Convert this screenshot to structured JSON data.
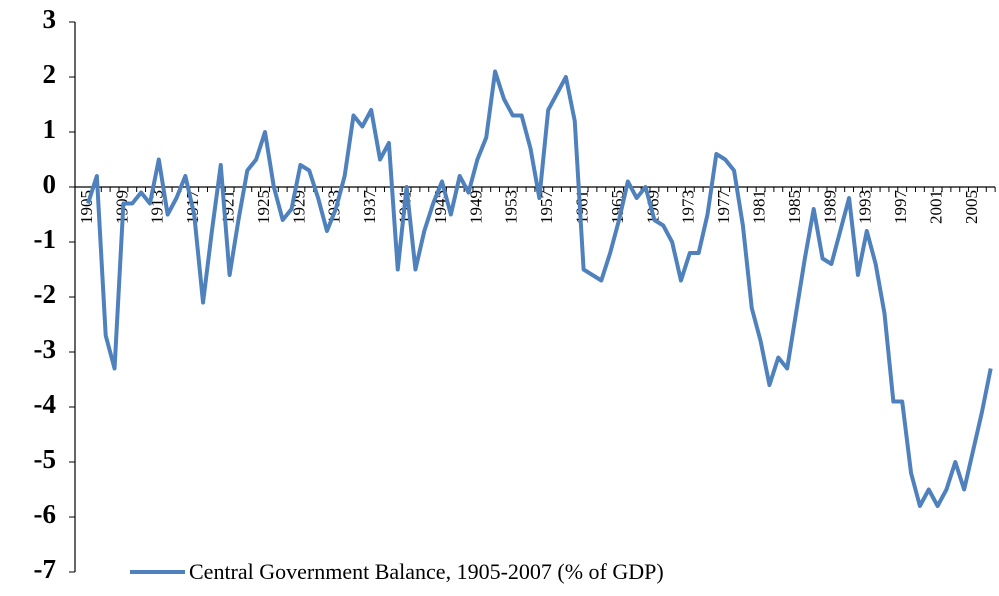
{
  "chart_data": {
    "type": "line",
    "categories": [
      "1905",
      null,
      null,
      null,
      "1909",
      null,
      null,
      null,
      "1913",
      null,
      null,
      null,
      "1917",
      null,
      null,
      null,
      "1921",
      null,
      null,
      null,
      "1925",
      null,
      null,
      null,
      "1929",
      null,
      null,
      null,
      "1933",
      null,
      null,
      null,
      "1937",
      null,
      null,
      null,
      "1941",
      null,
      null,
      null,
      "1945",
      null,
      null,
      null,
      "1949",
      null,
      null,
      null,
      "1953",
      null,
      null,
      null,
      "1957",
      null,
      null,
      null,
      "1961",
      null,
      null,
      null,
      "1965",
      null,
      null,
      null,
      "1969",
      null,
      null,
      null,
      "1973",
      null,
      null,
      null,
      "1977",
      null,
      null,
      null,
      "1981",
      null,
      null,
      null,
      "1985",
      null,
      null,
      null,
      "1989",
      null,
      null,
      null,
      "1993",
      null,
      null,
      null,
      "1997",
      null,
      null,
      null,
      "2001",
      null,
      null,
      null,
      "2005",
      null,
      null
    ],
    "series": [
      {
        "name": "Central Government Balance, 1905-2007 (% of GDP)",
        "color": "#4f81bd",
        "values": [
          -0.3,
          0.2,
          -2.7,
          -3.3,
          -0.3,
          -0.3,
          -0.1,
          -0.3,
          0.5,
          -0.5,
          -0.2,
          0.2,
          -0.5,
          -2.1,
          -0.8,
          0.4,
          -1.6,
          -0.6,
          0.3,
          0.5,
          1.0,
          0.0,
          -0.6,
          -0.4,
          0.4,
          0.3,
          -0.2,
          -0.8,
          -0.4,
          0.2,
          1.3,
          1.1,
          1.4,
          0.5,
          0.8,
          -1.5,
          0.0,
          -1.5,
          -0.8,
          -0.3,
          0.1,
          -0.5,
          0.2,
          -0.1,
          0.5,
          0.9,
          2.1,
          1.6,
          1.3,
          1.3,
          0.7,
          -0.2,
          1.4,
          1.7,
          2.0,
          1.2,
          -1.5,
          -1.6,
          -1.7,
          -1.2,
          -0.6,
          0.1,
          -0.2,
          0.0,
          -0.6,
          -0.7,
          -1.0,
          -1.7,
          -1.2,
          -1.2,
          -0.5,
          0.6,
          0.5,
          0.3,
          -0.7,
          -2.2,
          -2.8,
          -3.6,
          -3.1,
          -3.3,
          -2.3,
          -1.3,
          -0.4,
          -1.3,
          -1.4,
          -0.8,
          -0.2,
          -1.6,
          -0.8,
          -1.4,
          -2.3,
          -3.9,
          -3.9,
          -5.2,
          -5.8,
          -5.5,
          -5.8,
          -5.5,
          -5.0,
          -5.5,
          -4.8,
          -4.1,
          -3.3
        ]
      }
    ],
    "ylim": [
      -7,
      3
    ],
    "yticks": [
      3,
      2,
      1,
      0,
      -1,
      -2,
      -3,
      -4,
      -5,
      -6,
      -7
    ],
    "grid": false,
    "legend": "bottom"
  }
}
